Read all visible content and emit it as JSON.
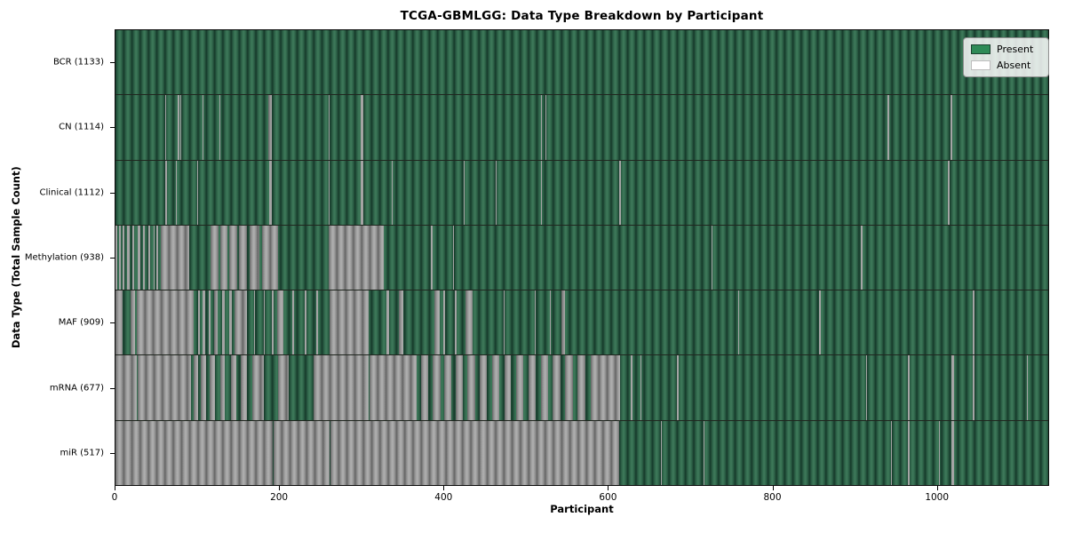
{
  "title": "TCGA-GBMLGG: Data Type Breakdown by Participant",
  "x_axis": {
    "label": "Participant",
    "ticks": [
      "0",
      "200",
      "400",
      "600",
      "800",
      "1000"
    ]
  },
  "y_axis": {
    "label": "Data Type (Total Sample Count)"
  },
  "legend": {
    "items": [
      {
        "label": "Present",
        "color": "#2e8b57"
      },
      {
        "label": "Absent",
        "color": "#ffffff"
      }
    ]
  },
  "chart_data": {
    "type": "heatmap",
    "title": "TCGA-GBMLGG: Data Type Breakdown by Participant",
    "xlabel": "Participant",
    "ylabel": "Data Type (Total Sample Count)",
    "x_range": [
      0,
      1133
    ],
    "x_tick_values": [
      0,
      200,
      400,
      600,
      800,
      1000
    ],
    "legend_entries": [
      "Present",
      "Absent"
    ],
    "present_color": "#2e8b57",
    "absent_color": "#ffffff",
    "grid": false,
    "legend_position": "upper right",
    "total_participants": 1133,
    "rows": [
      {
        "data_type": "BCR",
        "label": "BCR (1133)",
        "present_count": 1133,
        "absent_ranges": []
      },
      {
        "data_type": "CN",
        "label": "CN (1114)",
        "present_count": 1114,
        "absent_ranges": [
          [
            60,
            61
          ],
          [
            76,
            77
          ],
          [
            79,
            80
          ],
          [
            106,
            107
          ],
          [
            126,
            127
          ],
          [
            186,
            190
          ],
          [
            259,
            260
          ],
          [
            298,
            301
          ],
          [
            517,
            518
          ],
          [
            523,
            524
          ],
          [
            939,
            941
          ],
          [
            1016,
            1017
          ]
        ]
      },
      {
        "data_type": "Clinical",
        "label": "Clinical (1112)",
        "present_count": 1112,
        "absent_ranges": [
          [
            61,
            62
          ],
          [
            73,
            74
          ],
          [
            99,
            100
          ],
          [
            187,
            190
          ],
          [
            259,
            260
          ],
          [
            298,
            301
          ],
          [
            336,
            337
          ],
          [
            423,
            424
          ],
          [
            462,
            463
          ],
          [
            517,
            518
          ],
          [
            613,
            614
          ],
          [
            1012,
            1014
          ]
        ]
      },
      {
        "data_type": "Methylation",
        "label": "Methylation (938)",
        "present_count": 938,
        "absent_ranges": [
          [
            0,
            2
          ],
          [
            4,
            6
          ],
          [
            9,
            11
          ],
          [
            14,
            17
          ],
          [
            20,
            23
          ],
          [
            27,
            30
          ],
          [
            33,
            36
          ],
          [
            40,
            42
          ],
          [
            46,
            48
          ],
          [
            50,
            52
          ],
          [
            55,
            90
          ],
          [
            116,
            125
          ],
          [
            127,
            136
          ],
          [
            138,
            148
          ],
          [
            150,
            160
          ],
          [
            163,
            175
          ],
          [
            178,
            198
          ],
          [
            259,
            326
          ],
          [
            384,
            385
          ],
          [
            410,
            411
          ],
          [
            725,
            726
          ],
          [
            906,
            908
          ]
        ]
      },
      {
        "data_type": "MAF",
        "label": "MAF (909)",
        "present_count": 909,
        "absent_ranges": [
          [
            0,
            9
          ],
          [
            18,
            24
          ],
          [
            26,
            95
          ],
          [
            100,
            103
          ],
          [
            106,
            109
          ],
          [
            113,
            116
          ],
          [
            120,
            124
          ],
          [
            130,
            133
          ],
          [
            138,
            141
          ],
          [
            145,
            160
          ],
          [
            168,
            170
          ],
          [
            180,
            182
          ],
          [
            190,
            192
          ],
          [
            197,
            204
          ],
          [
            215,
            217
          ],
          [
            230,
            232
          ],
          [
            244,
            246
          ],
          [
            260,
            308
          ],
          [
            330,
            333
          ],
          [
            345,
            350
          ],
          [
            388,
            394
          ],
          [
            399,
            400
          ],
          [
            413,
            414
          ],
          [
            426,
            434
          ],
          [
            472,
            473
          ],
          [
            510,
            511
          ],
          [
            528,
            529
          ],
          [
            542,
            547
          ],
          [
            757,
            758
          ],
          [
            856,
            857
          ],
          [
            1043,
            1044
          ]
        ]
      },
      {
        "data_type": "mRNA",
        "label": "mRNA (677)",
        "present_count": 677,
        "absent_ranges": [
          [
            0,
            26
          ],
          [
            27,
            92
          ],
          [
            95,
            100
          ],
          [
            104,
            110
          ],
          [
            115,
            121
          ],
          [
            127,
            133
          ],
          [
            140,
            147
          ],
          [
            152,
            160
          ],
          [
            166,
            180
          ],
          [
            198,
            211
          ],
          [
            241,
            308
          ],
          [
            309,
            366
          ],
          [
            372,
            380
          ],
          [
            386,
            395
          ],
          [
            400,
            408
          ],
          [
            414,
            422
          ],
          [
            428,
            437
          ],
          [
            443,
            452
          ],
          [
            458,
            467
          ],
          [
            473,
            481
          ],
          [
            487,
            496
          ],
          [
            502,
            511
          ],
          [
            517,
            526
          ],
          [
            532,
            541
          ],
          [
            547,
            556
          ],
          [
            562,
            571
          ],
          [
            578,
            614
          ],
          [
            627,
            628
          ],
          [
            638,
            639
          ],
          [
            683,
            684
          ],
          [
            913,
            914
          ],
          [
            964,
            965
          ],
          [
            1017,
            1020
          ],
          [
            1043,
            1044
          ],
          [
            1108,
            1109
          ]
        ]
      },
      {
        "data_type": "miR",
        "label": "miR (517)",
        "present_count": 517,
        "absent_ranges": [
          [
            0,
            191
          ],
          [
            192,
            260
          ],
          [
            261,
            612
          ],
          [
            663,
            664
          ],
          [
            715,
            716
          ],
          [
            943,
            944
          ],
          [
            964,
            965
          ],
          [
            1001,
            1002
          ],
          [
            1017,
            1020
          ]
        ]
      }
    ]
  }
}
